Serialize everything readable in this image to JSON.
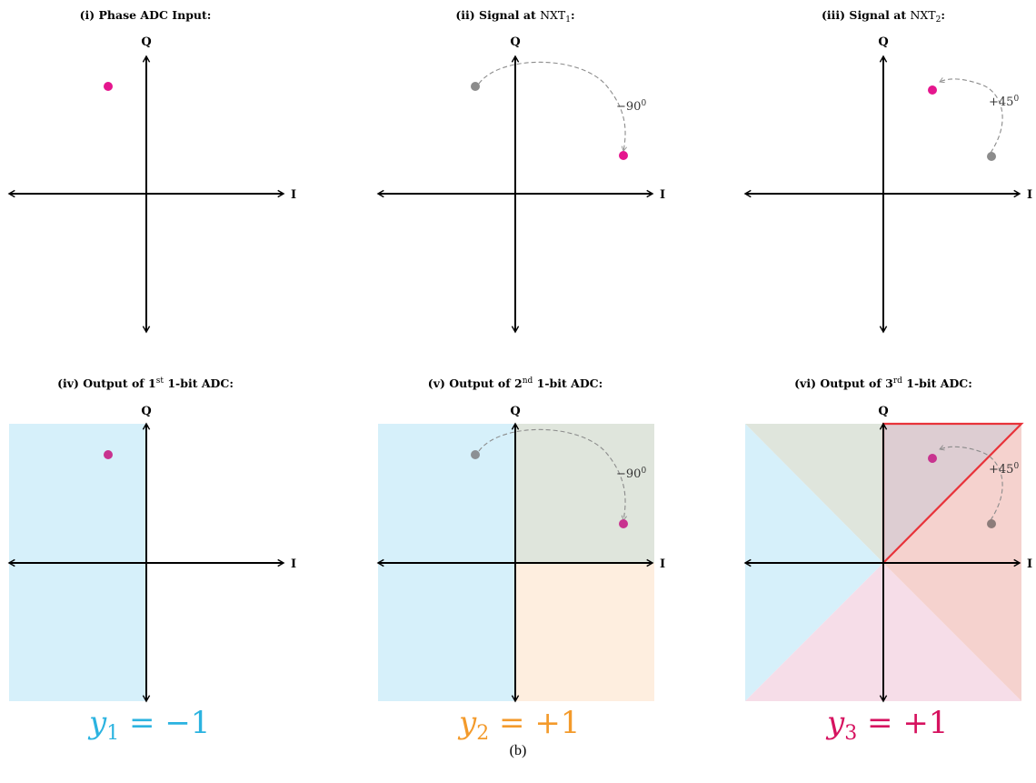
{
  "axis_labels": {
    "i": "I",
    "q": "Q"
  },
  "colors": {
    "input_point": "#e5168e",
    "ghost_point": "#8c8c8c",
    "region_blue": "#d6f0fa",
    "region_green": "#dfe5dc",
    "region_orange": "#feeedf",
    "region_pink": "#f6dde8",
    "region_red": "#f5d2ce",
    "region_mauve": "#ddcdd2",
    "highlight": "#e8333a",
    "y1_text": "#2bb3e0",
    "y2_text": "#f39a2b",
    "y3_text": "#d6125f"
  },
  "panels": [
    {
      "id": "p1",
      "title": "(i) Phase ADC Input:"
    },
    {
      "id": "p2",
      "title_prefix": "(ii) Signal at ",
      "title_node": "NXT",
      "title_sub": "1",
      "title_suffix": ":",
      "rotation": "−90",
      "rotation_sup": "0"
    },
    {
      "id": "p3",
      "title_prefix": "(iii) Signal at ",
      "title_node": "NXT",
      "title_sub": "2",
      "title_suffix": ":",
      "rotation": "+45",
      "rotation_sup": "0"
    },
    {
      "id": "p4",
      "title_prefix": "(iv) Output of 1",
      "title_sup": "st",
      "title_suffix": " 1-bit ADC:",
      "output_var": "y",
      "output_sub": "1",
      "output_value": " = −1"
    },
    {
      "id": "p5",
      "title_prefix": "(v) Output of 2",
      "title_sup": "nd",
      "title_suffix": " 1-bit ADC:",
      "rotation": "−90",
      "rotation_sup": "0",
      "output_var": "y",
      "output_sub": "2",
      "output_value": " = +1"
    },
    {
      "id": "p6",
      "title_prefix": "(vi) Output of 3",
      "title_sup": "rd",
      "title_suffix": " 1-bit ADC:",
      "rotation": "+45",
      "rotation_sup": "0",
      "output_var": "y",
      "output_sub": "3",
      "output_value": " = +1"
    }
  ],
  "figure_caption": "(b)"
}
